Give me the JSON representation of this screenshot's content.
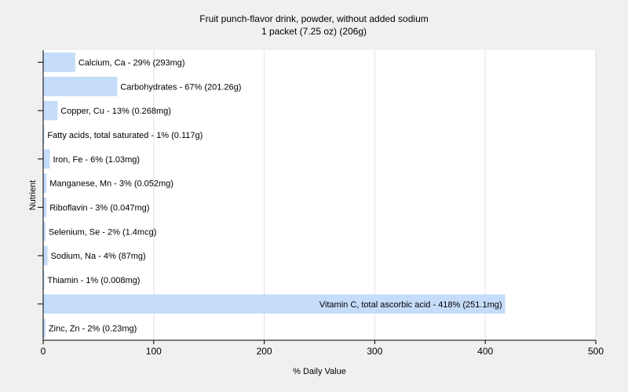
{
  "chart_data": {
    "type": "bar",
    "orientation": "horizontal",
    "title": "Fruit punch-flavor drink, powder, without added sodium",
    "subtitle": "1 packet (7.25 oz) (206g)",
    "xlabel": "% Daily Value",
    "ylabel": "Nutrient",
    "xlim": [
      0,
      500
    ],
    "xticks": [
      0,
      100,
      200,
      300,
      400,
      500
    ],
    "grid": true,
    "bar_color": "#c5dcfa",
    "categories": [
      "Calcium, Ca",
      "Carbohydrates",
      "Copper, Cu",
      "Fatty acids, total saturated",
      "Iron, Fe",
      "Manganese, Mn",
      "Riboflavin",
      "Selenium, Se",
      "Sodium, Na",
      "Thiamin",
      "Vitamin C, total ascorbic acid",
      "Zinc, Zn"
    ],
    "values": [
      29,
      67,
      13,
      1,
      6,
      3,
      3,
      2,
      4,
      1,
      418,
      2
    ],
    "labels": [
      "Calcium, Ca - 29% (293mg)",
      "Carbohydrates - 67% (201.26g)",
      "Copper, Cu - 13% (0.268mg)",
      "Fatty acids, total saturated - 1% (0.117g)",
      "Iron, Fe - 6% (1.03mg)",
      "Manganese, Mn - 3% (0.052mg)",
      "Riboflavin - 3% (0.047mg)",
      "Selenium, Se - 2% (1.4mcg)",
      "Sodium, Na - 4% (87mg)",
      "Thiamin - 1% (0.008mg)",
      "Vitamin C, total ascorbic acid - 418% (251.1mg)",
      "Zinc, Zn - 2% (0.23mg)"
    ]
  }
}
